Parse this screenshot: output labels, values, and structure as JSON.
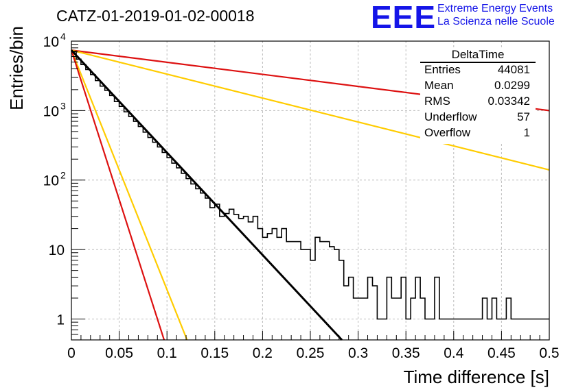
{
  "header": {
    "title": "CATZ-01-2019-01-02-00018",
    "logo_text": "EEE",
    "logo_line1": "Extreme Energy Events",
    "logo_line2": "La Scienza nelle Scuole"
  },
  "stats": {
    "title": "DeltaTime",
    "rows": [
      {
        "name": "Entries",
        "value": "44081"
      },
      {
        "name": "Mean",
        "value": "0.0299"
      },
      {
        "name": "RMS",
        "value": "0.03342"
      },
      {
        "name": "Underflow",
        "value": "57"
      },
      {
        "name": "Overflow",
        "value": "1"
      }
    ]
  },
  "chart_data": {
    "type": "histogram",
    "title": "CATZ-01-2019-01-02-00018",
    "xlabel": "Time difference [s]",
    "ylabel": "Entries/bin",
    "xlim": [
      0,
      0.5
    ],
    "ylim": [
      0.5,
      10000
    ],
    "y_scale": "log",
    "grid": true,
    "x_ticks": [
      "0",
      "0.05",
      "0.1",
      "0.15",
      "0.2",
      "0.25",
      "0.3",
      "0.35",
      "0.4",
      "0.45",
      "0.5"
    ],
    "y_ticks": [
      {
        "value": 1,
        "label": "1"
      },
      {
        "value": 10,
        "label": "10"
      },
      {
        "value": 100,
        "label": "10",
        "exp": "2"
      },
      {
        "value": 1000,
        "label": "10",
        "exp": "3"
      },
      {
        "value": 10000,
        "label": "10",
        "exp": "4"
      }
    ],
    "bin_width": 0.005,
    "histogram_counts": [
      7100,
      5500,
      4600,
      3900,
      3300,
      2700,
      2250,
      1950,
      1650,
      1350,
      1150,
      960,
      820,
      700,
      590,
      490,
      410,
      350,
      300,
      250,
      210,
      175,
      150,
      125,
      105,
      88,
      75,
      65,
      55,
      40,
      45,
      30,
      33,
      38,
      32,
      28,
      30,
      25,
      30,
      20,
      15,
      17,
      20,
      15,
      20,
      13,
      13,
      13,
      10,
      10,
      7,
      15,
      13,
      13,
      11,
      10,
      7,
      3,
      4,
      2,
      2,
      2,
      4,
      3,
      1,
      1,
      4,
      2,
      2,
      4,
      1,
      2,
      4,
      2,
      1,
      1,
      4,
      1,
      1,
      1,
      1,
      1,
      1,
      1,
      1,
      1,
      2,
      1,
      2,
      1,
      1,
      2,
      1,
      1,
      1,
      1,
      1,
      1,
      1,
      1
    ],
    "fit_curves": [
      {
        "color": "#000000",
        "x0": 0,
        "y0": 7400,
        "x1": 0.283,
        "y1": 0.5
      },
      {
        "color": "#dd1111",
        "x0": 0,
        "y0": 7400,
        "x1": 0.5,
        "y1": 1000
      },
      {
        "color": "#ffcc00",
        "x0": 0,
        "y0": 7400,
        "x1": 0.5,
        "y1": 140
      },
      {
        "color": "#ffcc00",
        "x0": 0,
        "y0": 7400,
        "x1": 0.121,
        "y1": 0.5
      },
      {
        "color": "#dd1111",
        "x0": 0,
        "y0": 7400,
        "x1": 0.097,
        "y1": 0.5
      }
    ]
  }
}
